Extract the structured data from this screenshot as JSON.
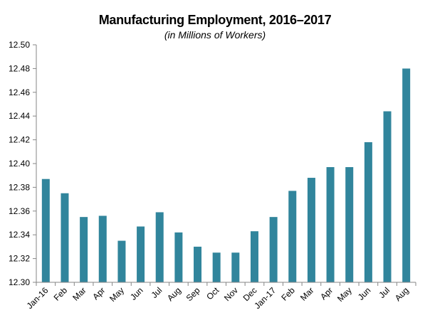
{
  "chart_data": {
    "type": "bar",
    "title": "Manufacturing Employment, 2016–2017",
    "subtitle": "(in Millions of Workers)",
    "xlabel": "",
    "ylabel": "",
    "ylim": [
      12.3,
      12.5
    ],
    "yticks": [
      "12.30",
      "12.32",
      "12.34",
      "12.36",
      "12.38",
      "12.40",
      "12.42",
      "12.44",
      "12.46",
      "12.48",
      "12.50"
    ],
    "categories": [
      "Jan-16",
      "Feb",
      "Mar",
      "Apr",
      "May",
      "Jun",
      "Jul",
      "Aug",
      "Sep",
      "Oct",
      "Nov",
      "Dec",
      "Jan-17",
      "Feb",
      "Mar",
      "Apr",
      "May",
      "Jun",
      "Jul",
      "Aug"
    ],
    "values": [
      12.387,
      12.375,
      12.355,
      12.356,
      12.335,
      12.347,
      12.359,
      12.342,
      12.33,
      12.325,
      12.325,
      12.343,
      12.355,
      12.377,
      12.388,
      12.397,
      12.397,
      12.418,
      12.444,
      12.48
    ],
    "bar_color": "#31859c",
    "grid": false
  }
}
